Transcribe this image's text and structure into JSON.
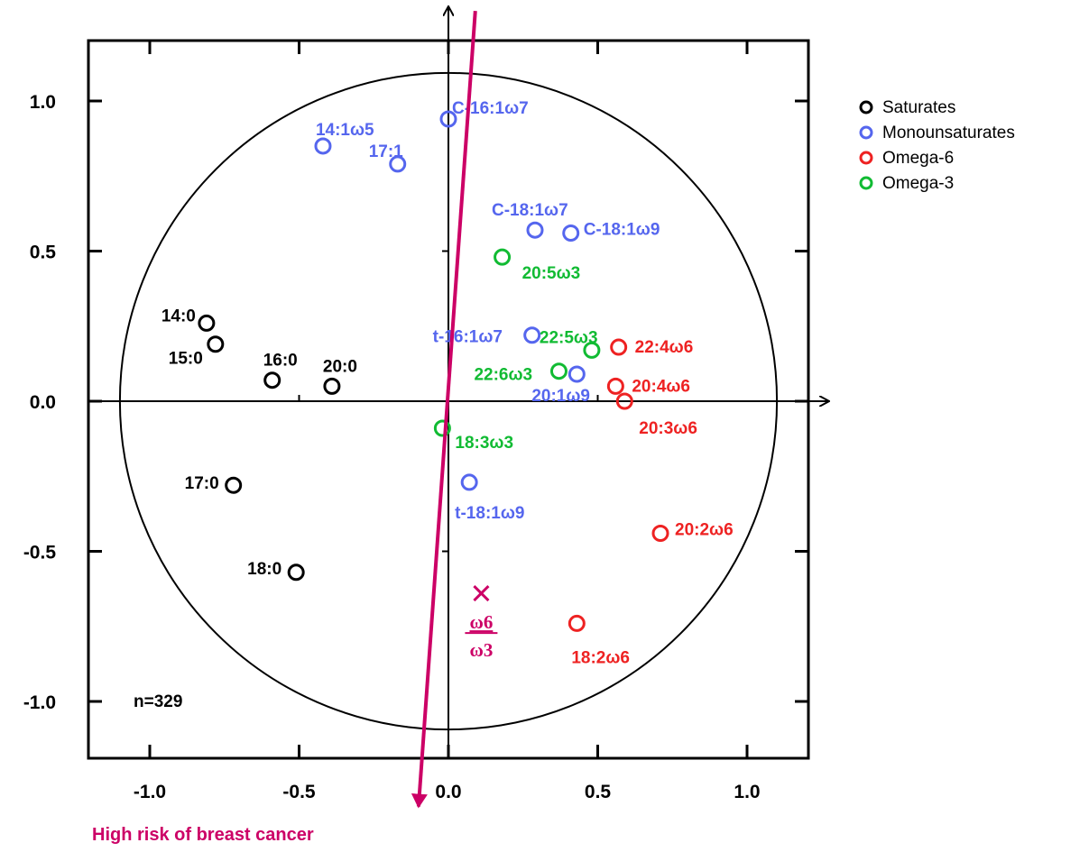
{
  "chart_data": {
    "type": "scatter",
    "xlim": [
      -1.2,
      1.2
    ],
    "ylim": [
      -1.2,
      1.2
    ],
    "grid": false,
    "legend_position": "top-right",
    "x_ticks": [
      "-1.0",
      "-0.5",
      "0.0",
      "0.5",
      "1.0"
    ],
    "y_ticks": [
      "1.0",
      "0.5",
      "0.0",
      "-0.5",
      "-1.0"
    ],
    "annotation_n": "n=329",
    "risk_label": "High risk of breast cancer",
    "risk_vector": {
      "x_start": 0.09,
      "y_start": 1.3,
      "x_end": -0.1,
      "y_end": -1.35
    },
    "ratio_marker": {
      "x": 0.11,
      "y": -0.64,
      "numerator": "ω6",
      "denominator": "ω3",
      "color": "#cc0066"
    },
    "colors": {
      "arrow": "#cc0066"
    },
    "series": [
      {
        "name": "Saturates",
        "color": "#000000",
        "points": [
          {
            "label": "14:0",
            "x": -0.81,
            "y": 0.26
          },
          {
            "label": "15:0",
            "x": -0.78,
            "y": 0.19
          },
          {
            "label": "16:0",
            "x": -0.59,
            "y": 0.07
          },
          {
            "label": "20:0",
            "x": -0.39,
            "y": 0.05
          },
          {
            "label": "17:0",
            "x": -0.72,
            "y": -0.28
          },
          {
            "label": "18:0",
            "x": -0.51,
            "y": -0.57
          }
        ]
      },
      {
        "name": "Monounsaturates",
        "color": "#5566ee",
        "points": [
          {
            "label": "C-16:1ω7",
            "x": 0.0,
            "y": 0.94
          },
          {
            "label": "14:1ω5",
            "x": -0.42,
            "y": 0.85
          },
          {
            "label": "17:1",
            "x": -0.17,
            "y": 0.79
          },
          {
            "label": "C-18:1ω7",
            "x": 0.29,
            "y": 0.57
          },
          {
            "label": "C-18:1ω9",
            "x": 0.41,
            "y": 0.56
          },
          {
            "label": "t-16:1ω7",
            "x": 0.28,
            "y": 0.22
          },
          {
            "label": "20:1ω9",
            "x": 0.43,
            "y": 0.09
          },
          {
            "label": "t-18:1ω9",
            "x": 0.07,
            "y": -0.27
          }
        ]
      },
      {
        "name": "Omega-6",
        "color": "#ee2222",
        "points": [
          {
            "label": "22:4ω6",
            "x": 0.57,
            "y": 0.18
          },
          {
            "label": "20:4ω6",
            "x": 0.56,
            "y": 0.05
          },
          {
            "label": "20:3ω6",
            "x": 0.59,
            "y": 0.0
          },
          {
            "label": "20:2ω6",
            "x": 0.71,
            "y": -0.44
          },
          {
            "label": "18:2ω6",
            "x": 0.43,
            "y": -0.74
          }
        ]
      },
      {
        "name": "Omega-3",
        "color": "#11bb33",
        "points": [
          {
            "label": "20:5ω3",
            "x": 0.18,
            "y": 0.48
          },
          {
            "label": "22:5ω3",
            "x": 0.48,
            "y": 0.17
          },
          {
            "label": "22:6ω3",
            "x": 0.37,
            "y": 0.1
          },
          {
            "label": "18:3ω3",
            "x": -0.02,
            "y": -0.09
          }
        ]
      }
    ]
  }
}
